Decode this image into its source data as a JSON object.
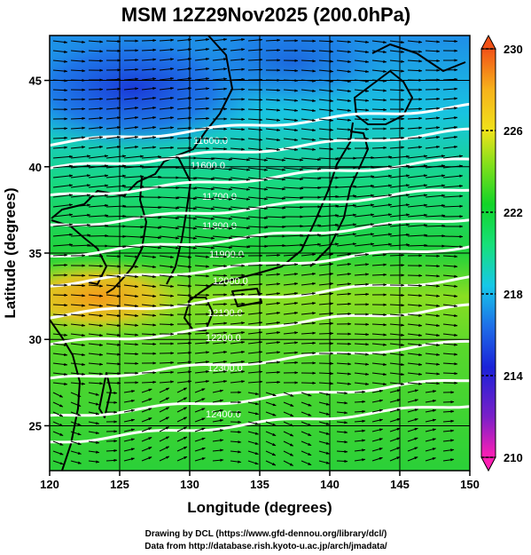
{
  "title": "MSM 12Z29Nov2025 (200.0hPa)",
  "xaxis": {
    "label": "Longitude (degrees)",
    "min": 120,
    "max": 150,
    "ticks": [
      "120",
      "125",
      "130",
      "135",
      "140",
      "145",
      "150"
    ]
  },
  "yaxis": {
    "label": "Latitude  (degrees)",
    "min": 22.4,
    "max": 47.6,
    "ticks": [
      "25",
      "30",
      "35",
      "40",
      "45"
    ]
  },
  "colorbar": {
    "min": 210,
    "max": 230,
    "ticks": [
      "210",
      "214",
      "218",
      "222",
      "226",
      "230"
    ],
    "colors": [
      "#ff1fb4",
      "#7a1fc8",
      "#1a22d8",
      "#1e6ee8",
      "#16c8e8",
      "#16e07a",
      "#12d428",
      "#86e01a",
      "#f0e21a",
      "#f7b21a",
      "#f25218"
    ]
  },
  "field_colors": {
    "north_blue": "#1e5ae0",
    "cyan": "#20c8d8",
    "green": "#22d23a",
    "yellow_green": "#a8e028",
    "orange": "#f4a21a"
  },
  "contours": {
    "color": "#ffffff",
    "labels": [
      "11600.0",
      "11600.0",
      "11700.0",
      "11800.0",
      "11900.0",
      "12000.0",
      "12100.0",
      "12200.0",
      "12300.0",
      "12400.0"
    ]
  },
  "wind": {
    "direction": "westerly",
    "arrow_color": "#000000"
  },
  "footer": {
    "line1": "Drawing by DCL (https://www.gfd-dennou.org/library/dcl/)",
    "line2": "Data from http://database.rish.kyoto-u.ac.jp/arch/jmadata/"
  }
}
